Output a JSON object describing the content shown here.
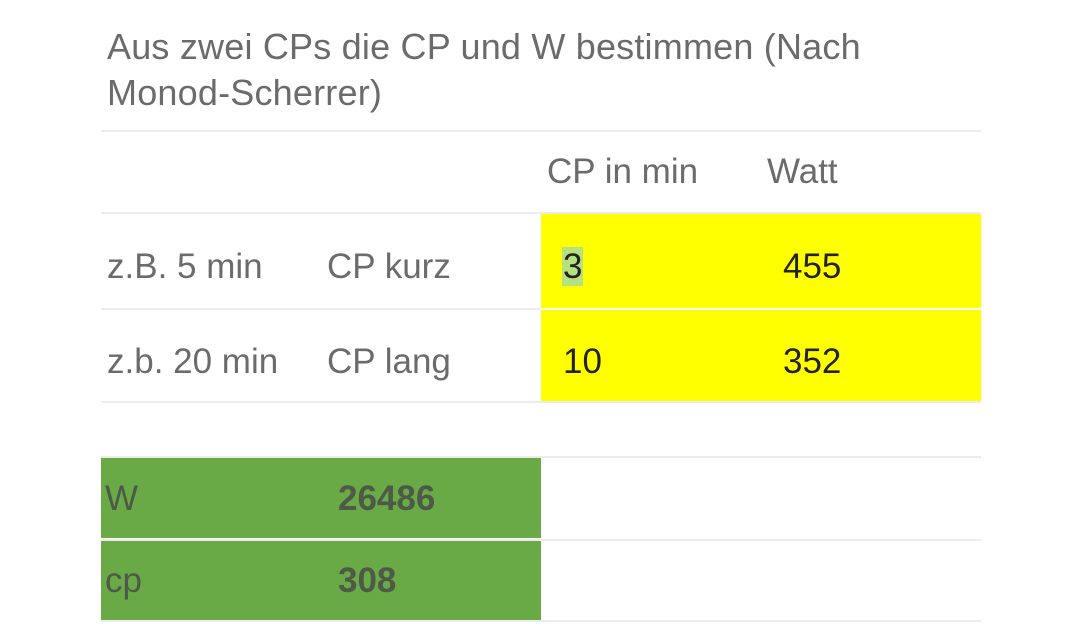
{
  "title": "Aus zwei CPs die CP und W bestimmen (Nach Monod-Scherrer)",
  "header": {
    "col_cp": "CP in min",
    "col_watt": "Watt"
  },
  "rows": [
    {
      "example": "z.B. 5 min",
      "label": "CP kurz",
      "cp_min": "3",
      "watt": "455"
    },
    {
      "example": "z.b. 20 min",
      "label": "CP lang",
      "cp_min": "10",
      "watt": "352"
    }
  ],
  "results": [
    {
      "label": "W",
      "value": "26486"
    },
    {
      "label": "cp",
      "value": "308"
    }
  ],
  "colors": {
    "input_fill": "#ffff00",
    "result_fill": "#6aaa46",
    "selection": "#b7e07f"
  }
}
